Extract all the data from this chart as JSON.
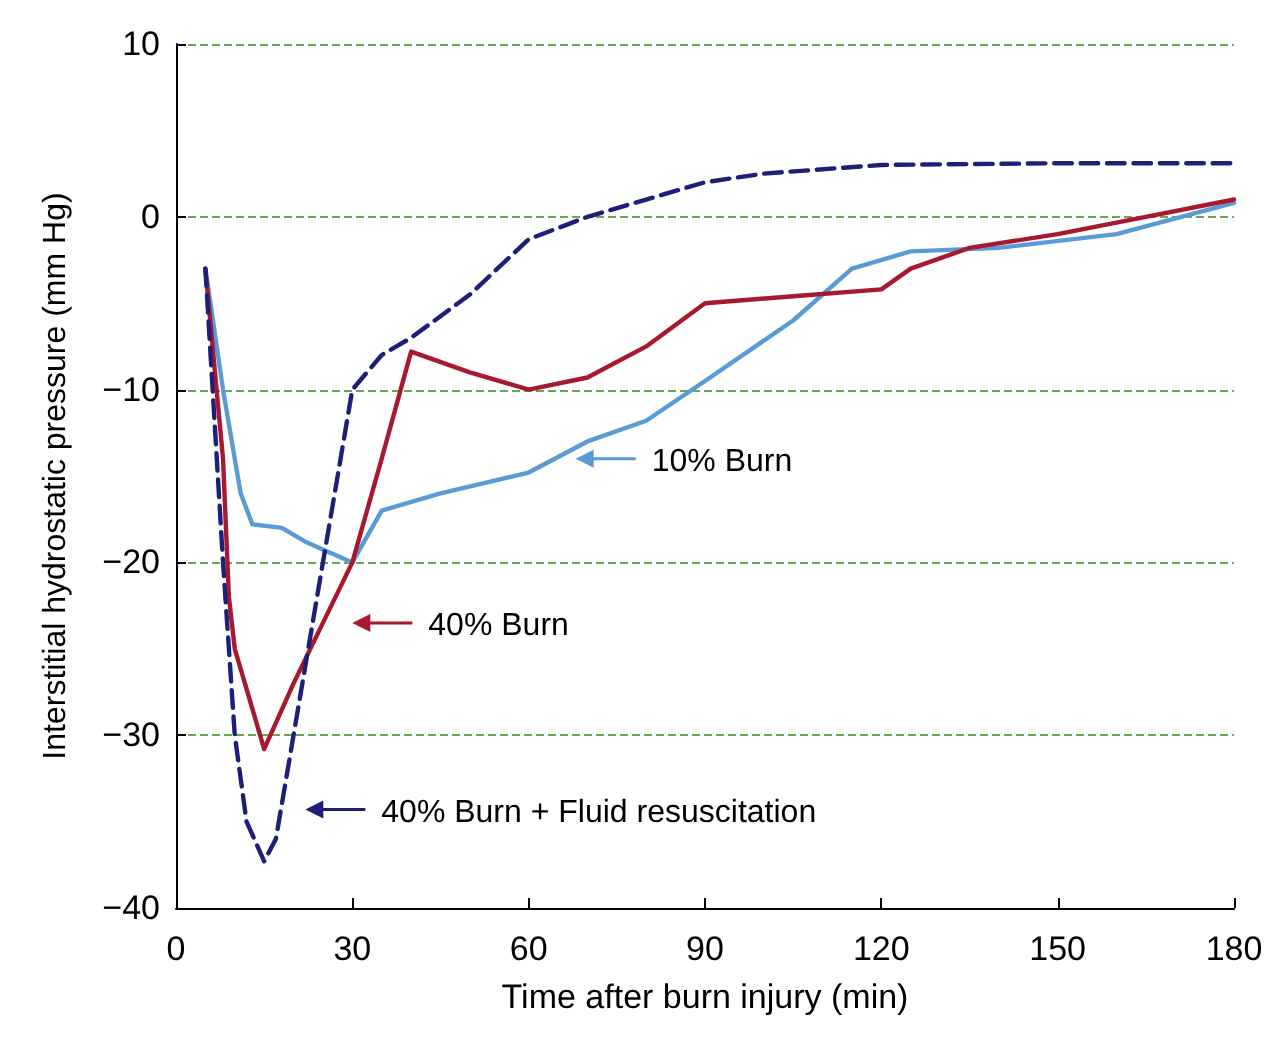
{
  "chart_data": {
    "type": "line",
    "xlabel": "Time after burn injury (min)",
    "ylabel": "Interstitial hydrostatic pressure (mm Hg)",
    "xlim": [
      0,
      180
    ],
    "xticks": [
      0,
      30,
      60,
      90,
      120,
      150,
      180
    ],
    "ylim": [
      -40,
      10
    ],
    "yticks": [
      -40,
      -30,
      -20,
      -10,
      0,
      10
    ],
    "grid": "y",
    "marker": "none",
    "series": [
      {
        "color": "#5b9bd5",
        "line_style": "solid",
        "x": [
          5,
          8,
          11,
          13,
          18,
          22,
          30,
          35,
          45,
          60,
          70,
          80,
          90,
          105,
          115,
          125,
          140,
          160,
          180
        ],
        "values": [
          -3,
          -10,
          -16,
          -17.8,
          -18,
          -18.8,
          -20,
          -17,
          -16,
          -14.8,
          -13,
          -11.8,
          -9.5,
          -6,
          -3,
          -2,
          -1.8,
          -1,
          0.8
        ]
      },
      {
        "color": "#a6192e",
        "line_style": "solid",
        "x": [
          5,
          8,
          9,
          10,
          15,
          20,
          30,
          35,
          40,
          50,
          60,
          70,
          80,
          90,
          105,
          120,
          125,
          135,
          150,
          165,
          180
        ],
        "values": [
          -3,
          -14,
          -22,
          -25,
          -30.8,
          -27,
          -20,
          -14,
          -7.8,
          -9,
          -10,
          -9.3,
          -7.5,
          -5,
          -4.6,
          -4.2,
          -3,
          -1.8,
          -1,
          0,
          1
        ]
      },
      {
        "color": "#1f1f7a",
        "line_style": "dashed",
        "x": [
          5,
          8,
          10,
          12,
          15,
          17,
          20,
          25,
          28,
          30,
          35,
          40,
          50,
          60,
          70,
          80,
          90,
          100,
          120,
          150,
          180
        ],
        "values": [
          -3,
          -20,
          -30,
          -35,
          -37.3,
          -36,
          -30,
          -20,
          -14,
          -10,
          -8,
          -7,
          -4.5,
          -1.3,
          0,
          1,
          2,
          2.5,
          3,
          3.1,
          3.1
        ]
      }
    ],
    "annotations": [
      "10% Burn",
      "40% Burn",
      "40% Burn + Fluid resuscitation"
    ]
  }
}
